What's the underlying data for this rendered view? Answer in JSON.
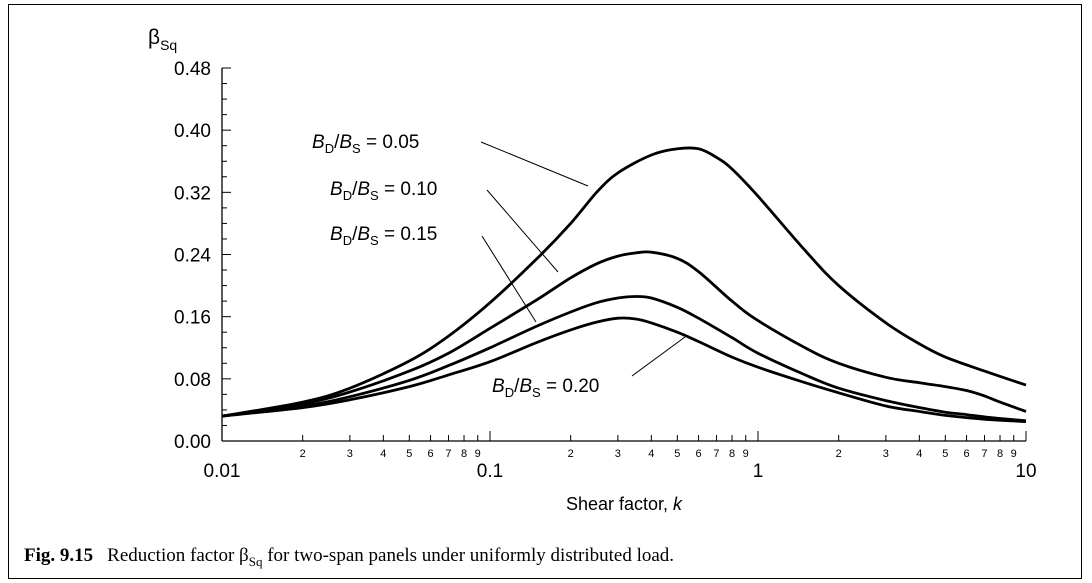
{
  "chart_data": {
    "type": "line",
    "y_axis_symbol": "β",
    "y_axis_symbol_sub": "Sq",
    "xlabel": "Shear factor, ",
    "xlabel_var": "k",
    "x_scale": "log",
    "xlim": [
      0.01,
      10
    ],
    "ylim": [
      0,
      0.48
    ],
    "y_ticks": [
      "0.00",
      "0.08",
      "0.16",
      "0.24",
      "0.32",
      "0.40",
      "0.48"
    ],
    "x_major_ticks": [
      {
        "value": 0.01,
        "label": "0.01"
      },
      {
        "value": 0.1,
        "label": "0.1"
      },
      {
        "value": 1,
        "label": "1"
      },
      {
        "value": 10,
        "label": "10"
      }
    ],
    "x_minor_labels": [
      "2",
      "3",
      "4",
      "5",
      "6",
      "7",
      "8",
      "9"
    ],
    "grid": false,
    "series": [
      {
        "name": "B_D/B_S = 0.05",
        "label_parts": [
          "B",
          "D",
          "/B",
          "S",
          " = 0.05"
        ],
        "x": [
          0.01,
          0.02,
          0.03,
          0.05,
          0.07,
          0.1,
          0.15,
          0.2,
          0.25,
          0.3,
          0.4,
          0.5,
          0.6,
          0.7,
          0.8,
          1.0,
          1.5,
          2,
          3,
          4,
          5,
          7,
          10
        ],
        "y": [
          0.032,
          0.05,
          0.068,
          0.103,
          0.135,
          0.178,
          0.235,
          0.28,
          0.32,
          0.345,
          0.368,
          0.376,
          0.376,
          0.365,
          0.35,
          0.315,
          0.245,
          0.2,
          0.152,
          0.125,
          0.108,
          0.09,
          0.072
        ]
      },
      {
        "name": "B_D/B_S = 0.10",
        "label_parts": [
          "B",
          "D",
          "/B",
          "S",
          " = 0.10"
        ],
        "x": [
          0.01,
          0.02,
          0.03,
          0.05,
          0.07,
          0.1,
          0.15,
          0.2,
          0.25,
          0.3,
          0.35,
          0.4,
          0.5,
          0.6,
          0.8,
          1.0,
          1.5,
          2,
          3,
          4,
          5,
          6,
          7,
          8,
          10
        ],
        "y": [
          0.032,
          0.048,
          0.063,
          0.09,
          0.113,
          0.145,
          0.182,
          0.21,
          0.228,
          0.238,
          0.242,
          0.243,
          0.235,
          0.218,
          0.18,
          0.155,
          0.12,
          0.1,
          0.082,
          0.075,
          0.07,
          0.065,
          0.058,
          0.05,
          0.038
        ]
      },
      {
        "name": "B_D/B_S = 0.15",
        "label_parts": [
          "B",
          "D",
          "/B",
          "S",
          " = 0.15"
        ],
        "x": [
          0.01,
          0.02,
          0.03,
          0.05,
          0.07,
          0.1,
          0.15,
          0.2,
          0.25,
          0.3,
          0.35,
          0.4,
          0.5,
          0.6,
          0.8,
          1.0,
          1.5,
          2,
          3,
          4,
          5,
          6,
          7,
          8,
          10
        ],
        "y": [
          0.032,
          0.045,
          0.057,
          0.078,
          0.097,
          0.12,
          0.148,
          0.166,
          0.178,
          0.184,
          0.186,
          0.184,
          0.172,
          0.158,
          0.133,
          0.113,
          0.085,
          0.068,
          0.052,
          0.043,
          0.037,
          0.034,
          0.031,
          0.029,
          0.026
        ]
      },
      {
        "name": "B_D/B_S = 0.20",
        "label_parts": [
          "B",
          "D",
          "/B",
          "S",
          " = 0.20"
        ],
        "x": [
          0.01,
          0.02,
          0.03,
          0.05,
          0.07,
          0.1,
          0.15,
          0.2,
          0.25,
          0.3,
          0.35,
          0.4,
          0.5,
          0.6,
          0.8,
          1.0,
          1.5,
          2,
          3,
          4,
          5,
          7,
          10
        ],
        "y": [
          0.032,
          0.043,
          0.053,
          0.07,
          0.085,
          0.102,
          0.127,
          0.143,
          0.153,
          0.158,
          0.157,
          0.152,
          0.14,
          0.128,
          0.108,
          0.095,
          0.075,
          0.062,
          0.045,
          0.038,
          0.033,
          0.028,
          0.025
        ]
      }
    ]
  },
  "caption": {
    "figure": "Fig. 9.15",
    "text_before": "Reduction factor β",
    "text_sub": "Sq",
    "text_after": " for two-span panels under uniformly distributed load."
  }
}
